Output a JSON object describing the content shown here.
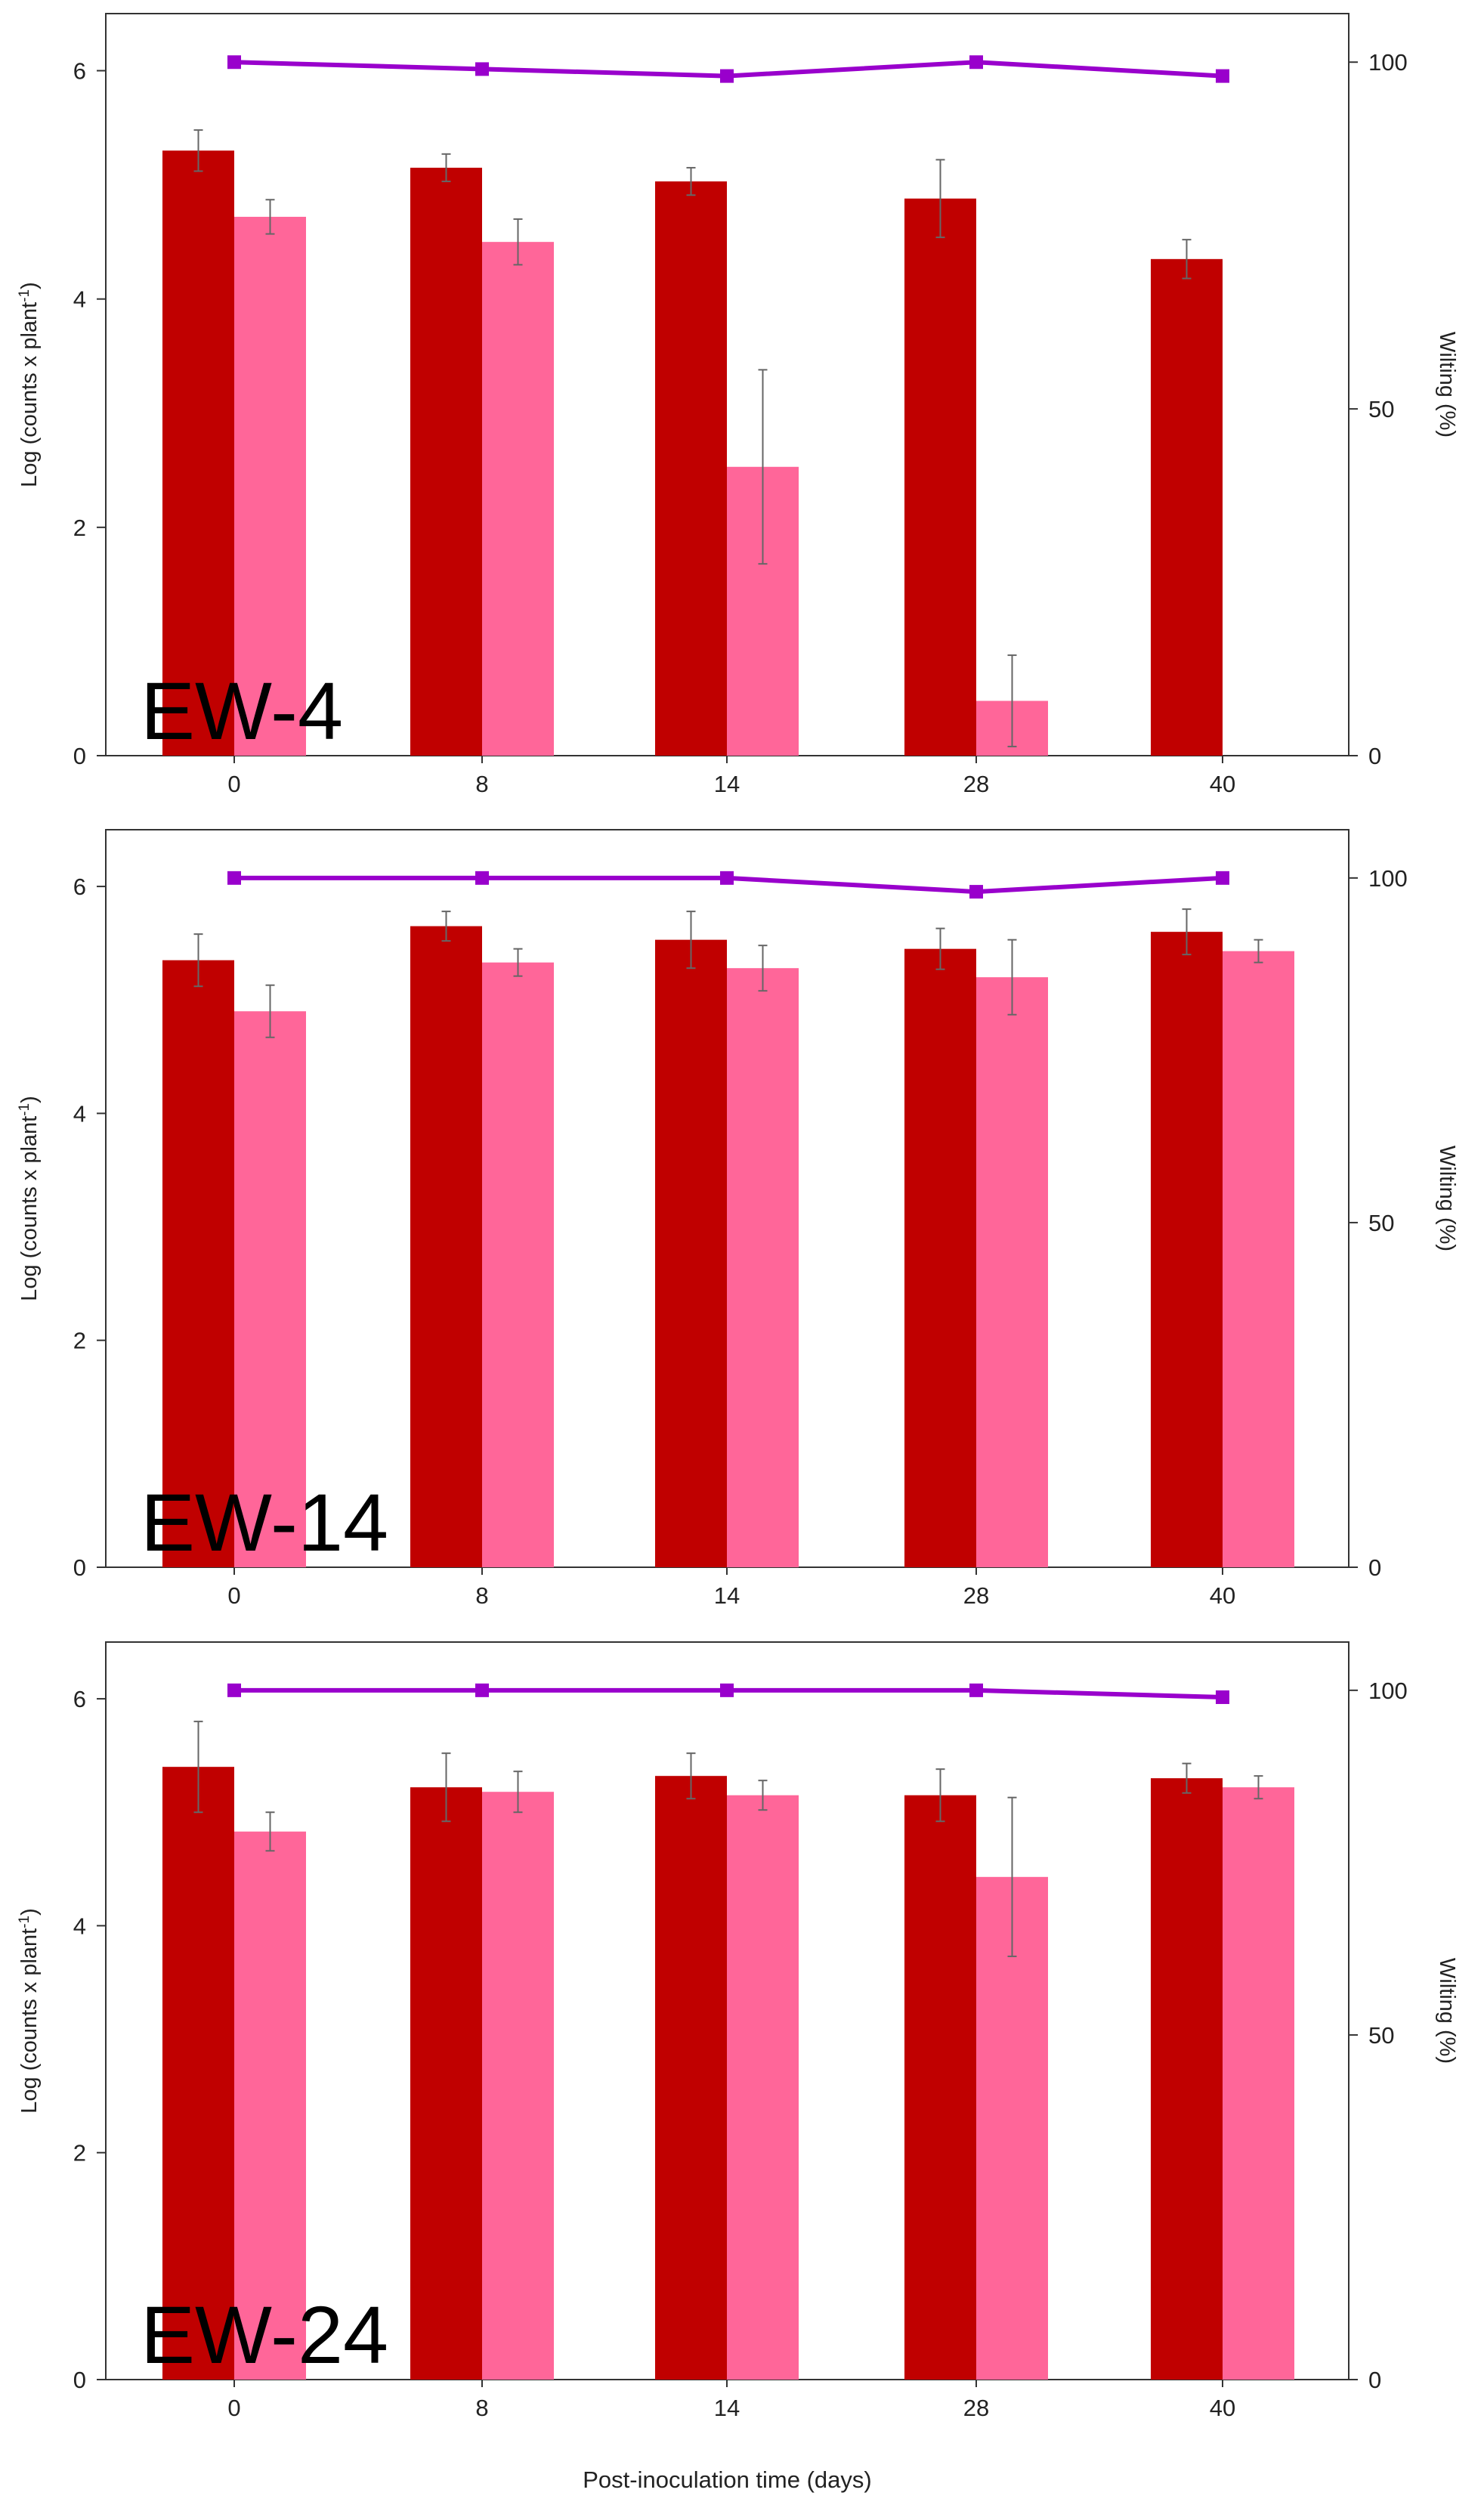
{
  "colors": {
    "bar_dark": "#C00000",
    "bar_light": "#FF6699",
    "wilting_line": "#9900CC",
    "axis": "#333333",
    "error_bar": "#666666"
  },
  "chart_data": [
    {
      "type": "bar",
      "title": "EW-4",
      "categories": [
        "0",
        "8",
        "14",
        "28",
        "40"
      ],
      "xlabel": "",
      "ylabel": "Log (counts x plant",
      "ylabel_sup": "-1",
      "ylabel_close": ")",
      "y2label": "Wilting (%)",
      "ylim": [
        0,
        6.5
      ],
      "y2lim": [
        0,
        107
      ],
      "yticks": [
        "0",
        "2",
        "4",
        "6"
      ],
      "y2ticks": [
        "0",
        "50",
        "100"
      ],
      "series": [
        {
          "name": "dark",
          "values": [
            5.3,
            5.15,
            5.03,
            4.88,
            4.35
          ],
          "errors": [
            0.18,
            0.12,
            0.12,
            0.34,
            0.17
          ]
        },
        {
          "name": "light",
          "values": [
            4.72,
            4.5,
            2.53,
            0.48,
            null
          ],
          "errors": [
            0.15,
            0.2,
            0.85,
            0.4,
            null
          ]
        }
      ],
      "line": {
        "name": "Wilting",
        "values": [
          100,
          99,
          98,
          100,
          98
        ]
      }
    },
    {
      "type": "bar",
      "title": "EW-14",
      "categories": [
        "0",
        "8",
        "14",
        "28",
        "40"
      ],
      "xlabel": "",
      "ylabel": "Log (counts x plant",
      "ylabel_sup": "-1",
      "ylabel_close": ")",
      "y2label": "Wilting (%)",
      "ylim": [
        0,
        6.5
      ],
      "y2lim": [
        0,
        107
      ],
      "yticks": [
        "0",
        "2",
        "4",
        "6"
      ],
      "y2ticks": [
        "0",
        "50",
        "100"
      ],
      "series": [
        {
          "name": "dark",
          "values": [
            5.35,
            5.65,
            5.53,
            5.45,
            5.6
          ],
          "errors": [
            0.23,
            0.13,
            0.25,
            0.18,
            0.2
          ]
        },
        {
          "name": "light",
          "values": [
            4.9,
            5.33,
            5.28,
            5.2,
            5.43
          ],
          "errors": [
            0.23,
            0.12,
            0.2,
            0.33,
            0.1
          ]
        }
      ],
      "line": {
        "name": "Wilting",
        "values": [
          100,
          100,
          100,
          98,
          100
        ]
      }
    },
    {
      "type": "bar",
      "title": "EW-24",
      "categories": [
        "0",
        "8",
        "14",
        "28",
        "40"
      ],
      "xlabel": "Post-inoculation time (days)",
      "ylabel": "Log (counts x plant",
      "ylabel_sup": "-1",
      "ylabel_close": ")",
      "y2label": "Wilting (%)",
      "ylim": [
        0,
        6.5
      ],
      "y2lim": [
        0,
        107
      ],
      "yticks": [
        "0",
        "2",
        "4",
        "6"
      ],
      "y2ticks": [
        "0",
        "50",
        "100"
      ],
      "series": [
        {
          "name": "dark",
          "values": [
            5.4,
            5.22,
            5.32,
            5.15,
            5.3
          ],
          "errors": [
            0.4,
            0.3,
            0.2,
            0.23,
            0.13
          ]
        },
        {
          "name": "light",
          "values": [
            4.83,
            5.18,
            5.15,
            4.43,
            5.22
          ],
          "errors": [
            0.17,
            0.18,
            0.13,
            0.7,
            0.1
          ]
        }
      ],
      "line": {
        "name": "Wilting",
        "values": [
          100,
          100,
          100,
          100,
          99
        ]
      }
    }
  ]
}
